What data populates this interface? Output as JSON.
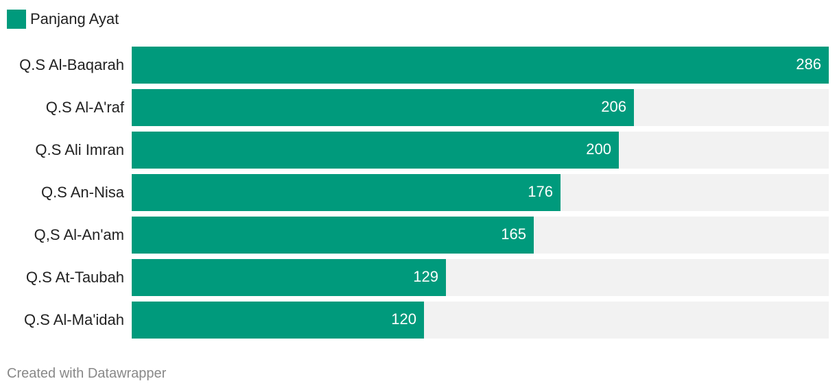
{
  "legend": {
    "label": "Panjang Ayat",
    "color": "#009a7c"
  },
  "credit": "Created with Datawrapper",
  "colors": {
    "bar": "#009a7c",
    "track": "#f2f2f2"
  },
  "chart_data": {
    "type": "bar",
    "orientation": "horizontal",
    "categories": [
      "Q.S Al-Baqarah",
      "Q.S Al-A'raf",
      "Q.S Ali Imran",
      "Q.S An-Nisa",
      "Q,S Al-An'am",
      "Q.S At-Taubah",
      "Q.S Al-Ma'idah"
    ],
    "series": [
      {
        "name": "Panjang Ayat",
        "values": [
          286,
          206,
          200,
          176,
          165,
          129,
          120
        ]
      }
    ],
    "xlim": [
      0,
      286
    ],
    "grid": false,
    "legend_position": "top-left"
  }
}
